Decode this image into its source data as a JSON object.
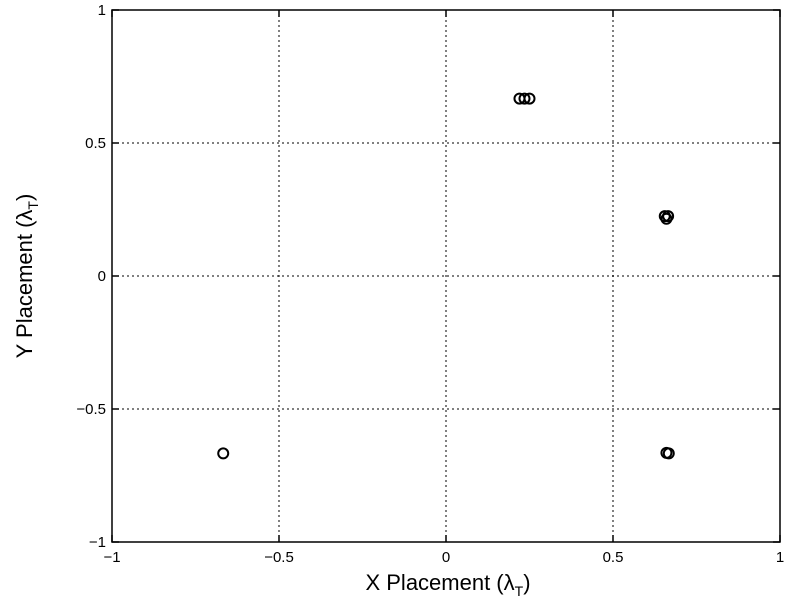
{
  "chart_data": {
    "type": "scatter",
    "title": "",
    "xlabel": "X Placement (",
    "ylabel": "Y Placement (",
    "axis_symbol": "λ",
    "axis_subscript": "T",
    "axis_close": ")",
    "xlim": [
      -1,
      1
    ],
    "ylim": [
      -1,
      1
    ],
    "xticks": [
      -1,
      -0.5,
      0,
      0.5,
      1
    ],
    "yticks": [
      -1,
      -0.5,
      0,
      0.5,
      1
    ],
    "xtick_labels": [
      "−1",
      "−0.5",
      "0",
      "0.5",
      "1"
    ],
    "ytick_labels": [
      "−1",
      "−0.5",
      "0",
      "0.5",
      "1"
    ],
    "grid": true,
    "marker": "o",
    "series": [
      {
        "points": [
          {
            "x": 0.22,
            "y": 0.667
          },
          {
            "x": 0.235,
            "y": 0.667
          },
          {
            "x": 0.25,
            "y": 0.667
          },
          {
            "x": 0.655,
            "y": 0.225
          },
          {
            "x": 0.665,
            "y": 0.225
          },
          {
            "x": 0.66,
            "y": 0.215
          },
          {
            "x": 0.66,
            "y": -0.665
          },
          {
            "x": 0.667,
            "y": -0.667
          },
          {
            "x": -0.667,
            "y": -0.667
          }
        ]
      }
    ]
  }
}
